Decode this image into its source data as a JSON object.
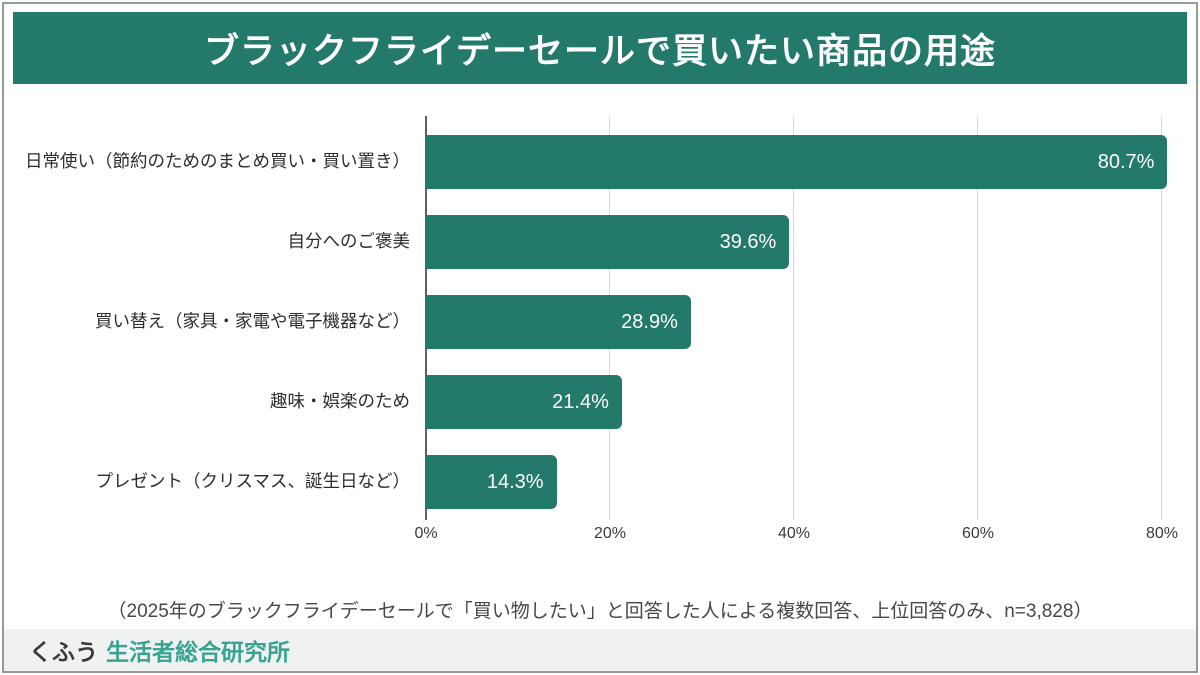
{
  "header": {
    "title": "ブラックフライデーセールで買いたい商品の用途"
  },
  "chart_data": {
    "type": "bar",
    "orientation": "horizontal",
    "title": "ブラックフライデーセールで買いたい商品の用途",
    "categories": [
      "日常使い（節約のためのまとめ買い・買い置き）",
      "自分へのご褒美",
      "買い替え（家具・家電や電子機器など）",
      "趣味・娯楽のため",
      "プレゼント（クリスマス、誕生日など）"
    ],
    "values": [
      80.7,
      39.6,
      28.9,
      21.4,
      14.3
    ],
    "value_labels": [
      "80.7%",
      "39.6%",
      "28.9%",
      "21.4%",
      "14.3%"
    ],
    "x_ticks": [
      "0%",
      "20%",
      "40%",
      "60%",
      "80%"
    ],
    "x_tick_values": [
      0,
      20,
      40,
      60,
      80
    ],
    "xlim": [
      0,
      84
    ],
    "grid": true,
    "legend": false,
    "bar_color": "#23796A",
    "note": "（2025年のブラックフライデーセールで「買い物したい」と回答した人による複数回答、上位回答のみ、n=3,828）"
  },
  "footer": {
    "brand_prefix": "くふう",
    "brand_name": "生活者総合研究所"
  },
  "colors": {
    "accent_green": "#23796A",
    "title_text": "#FFFFFF",
    "footer_teal": "#38A390",
    "footer_bg": "#F0F2F1",
    "grid_line": "#D8D8D8",
    "axis_line": "#5F5F5F",
    "border_gray": "#949B99"
  }
}
